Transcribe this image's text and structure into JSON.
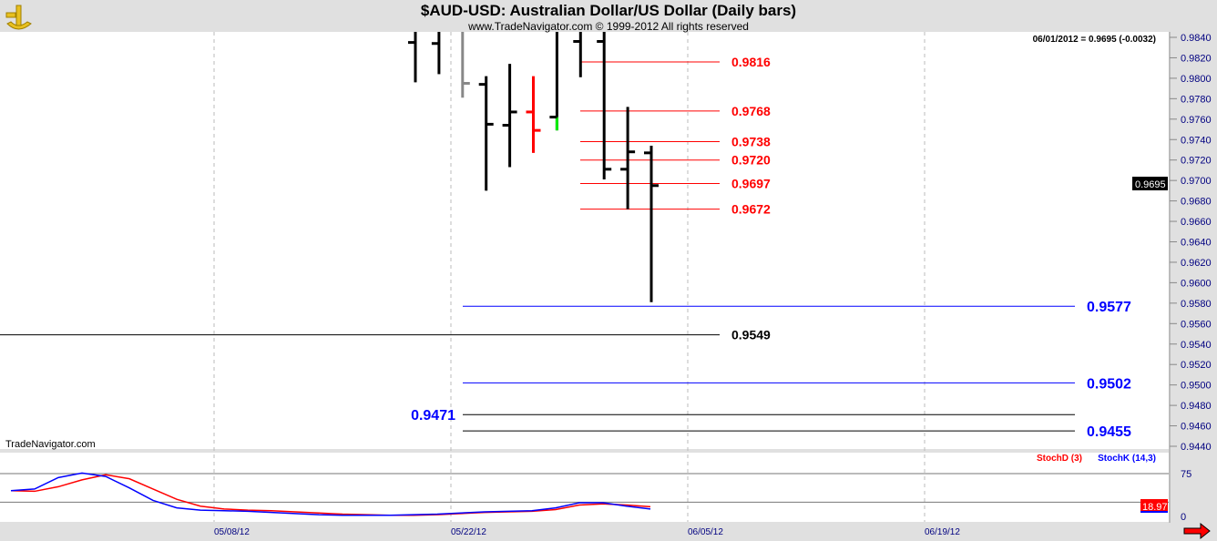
{
  "chart_data": {
    "type": "ohlc",
    "title": "$AUD-USD:  Australian Dollar/US Dollar  (Daily bars)",
    "subtitle": "www.TradeNavigator.com © 1999-2012 All rights reserved",
    "watermark": "TradeNavigator.com",
    "readout": "06/01/2012 = 0.9695 (-0.0032)",
    "last_price_label": "0.9695",
    "ylim": [
      0.943,
      0.985
    ],
    "yticks": [
      "0.9840",
      "0.9820",
      "0.9800",
      "0.9780",
      "0.9760",
      "0.9740",
      "0.9720",
      "0.9700",
      "0.9680",
      "0.9660",
      "0.9640",
      "0.9620",
      "0.9600",
      "0.9580",
      "0.9560",
      "0.9540",
      "0.9520",
      "0.9500",
      "0.9480",
      "0.9460",
      "0.9440"
    ],
    "xticks": [
      "05/08/12",
      "05/22/12",
      "06/05/12",
      "06/19/12"
    ],
    "bars": [
      {
        "o": 0.9835,
        "h": 0.986,
        "l": 0.9796,
        "c": 0.985,
        "color": "#000000"
      },
      {
        "o": 0.9834,
        "h": 0.986,
        "l": 0.9804,
        "c": 0.985,
        "color": "#000000"
      },
      {
        "o": 0.985,
        "h": 0.986,
        "l": 0.9781,
        "c": 0.9795,
        "color": "#888888"
      },
      {
        "o": 0.9794,
        "h": 0.9802,
        "l": 0.969,
        "c": 0.9755,
        "color": "#000000"
      },
      {
        "o": 0.9754,
        "h": 0.9814,
        "l": 0.9713,
        "c": 0.9767,
        "color": "#000000"
      },
      {
        "o": 0.9767,
        "h": 0.9802,
        "l": 0.9727,
        "c": 0.9749,
        "color": "#ff0000"
      },
      {
        "o": 0.9762,
        "h": 0.986,
        "l": 0.9749,
        "c": 0.986,
        "color": "#000000",
        "low_tail_color": "#00ee00"
      },
      {
        "o": 0.9836,
        "h": 0.986,
        "l": 0.9801,
        "c": 0.986,
        "color": "#000000"
      },
      {
        "o": 0.9836,
        "h": 0.986,
        "l": 0.9701,
        "c": 0.9711,
        "color": "#000000"
      },
      {
        "o": 0.9711,
        "h": 0.9772,
        "l": 0.9672,
        "c": 0.9728,
        "color": "#000000"
      },
      {
        "o": 0.9727,
        "h": 0.9734,
        "l": 0.9581,
        "c": 0.9695,
        "color": "#000000"
      }
    ],
    "levels": [
      {
        "value": "0.9816",
        "line": "#ff0000",
        "label_color": "#ff0000",
        "span": "short"
      },
      {
        "value": "0.9768",
        "line": "#ff0000",
        "label_color": "#ff0000",
        "span": "short"
      },
      {
        "value": "0.9738",
        "line": "#ff0000",
        "label_color": "#ff0000",
        "span": "short"
      },
      {
        "value": "0.9720",
        "line": "#ff0000",
        "label_color": "#ff0000",
        "span": "short"
      },
      {
        "value": "0.9697",
        "line": "#ff0000",
        "label_color": "#ff0000",
        "span": "short"
      },
      {
        "value": "0.9672",
        "line": "#ff0000",
        "label_color": "#ff0000",
        "span": "short"
      },
      {
        "value": "0.9577",
        "line": "#0000ff",
        "label_color": "#0000ff",
        "span": "long"
      },
      {
        "value": "0.9549",
        "line": "#000000",
        "label_color": "#000000",
        "span": "left"
      },
      {
        "value": "0.9502",
        "line": "#0000ff",
        "label_color": "#0000ff",
        "span": "long"
      },
      {
        "value": "0.9471",
        "line": "#000000",
        "label_color": "#0000ff",
        "span": "long-labelleft"
      },
      {
        "value": "0.9455",
        "line": "#000000",
        "label_color": "#0000ff",
        "span": "long"
      }
    ],
    "stochastic": {
      "legend": [
        {
          "name": "StochD (3)",
          "color": "#ff0000"
        },
        {
          "name": "StochK (14,3)",
          "color": "#0000ff"
        }
      ],
      "yticks": [
        "75",
        "0"
      ],
      "last_label": "18.97",
      "k": [
        45,
        48,
        68,
        76,
        70,
        50,
        28,
        15,
        11,
        10,
        9,
        7,
        5,
        3,
        2,
        2,
        2,
        3,
        4,
        6,
        8,
        9,
        10,
        15,
        24,
        24,
        18,
        13
      ],
      "d": [
        45,
        44,
        52,
        64,
        73,
        66,
        48,
        30,
        18,
        13,
        11,
        10,
        8,
        6,
        4,
        3,
        2,
        2,
        3,
        5,
        7,
        8,
        9,
        12,
        20,
        22,
        20,
        17
      ]
    }
  }
}
